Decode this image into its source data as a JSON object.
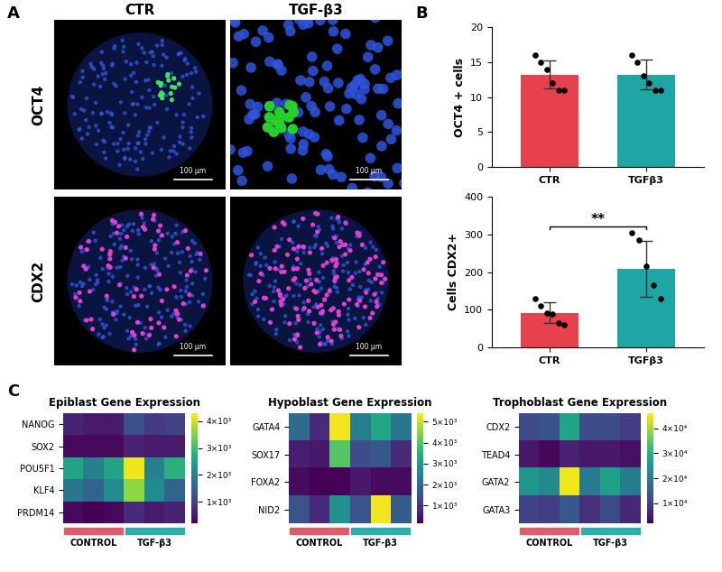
{
  "panel_labels": [
    "A",
    "B",
    "C"
  ],
  "images": {
    "column_labels": [
      "CTR",
      "TGF-β3"
    ],
    "row_labels": [
      "OCT4",
      "CDX2"
    ],
    "scale_bar": "100 µm"
  },
  "chart_data": [
    {
      "type": "bar",
      "y_label": "OCT4 + cells",
      "categories": [
        "CTR",
        "TGFβ3"
      ],
      "values": [
        13.2,
        13.2
      ],
      "errors": [
        2.0,
        2.1
      ],
      "points": [
        [
          16,
          15,
          14,
          12,
          11,
          11
        ],
        [
          16,
          15,
          13,
          12,
          11,
          11
        ]
      ],
      "colors": [
        "#e8414e",
        "#1fa5a5"
      ],
      "ylim": [
        0,
        20
      ],
      "yticks": [
        0,
        5,
        10,
        15,
        20
      ]
    },
    {
      "type": "bar",
      "y_label": "Cells CDX2+",
      "categories": [
        "CTR",
        "TGFβ3"
      ],
      "values": [
        92,
        208
      ],
      "errors": [
        28,
        75
      ],
      "points": [
        [
          130,
          110,
          90,
          88,
          65,
          60
        ],
        [
          305,
          285,
          215,
          165,
          130
        ]
      ],
      "colors": [
        "#e8414e",
        "#1fa5a5"
      ],
      "ylim": [
        0,
        400
      ],
      "yticks": [
        0,
        100,
        200,
        300,
        400
      ],
      "annotation": "**"
    },
    {
      "type": "heatmap",
      "title": "Epiblast Gene Expression",
      "rows": [
        "NANOG",
        "SOX2",
        "POU5F1",
        "KLF4",
        "PRDM14"
      ],
      "column_groups": [
        "CONTROL",
        "CONTROL",
        "CONTROL",
        "TGF-β3",
        "TGF-β3",
        "TGF-β3"
      ],
      "groups": [
        {
          "name": "CONTROL",
          "color": "#e05a68"
        },
        {
          "name": "TGF-β3",
          "color": "#2ab0ac"
        }
      ],
      "cells": [
        [
          600,
          500,
          500,
          1200,
          900,
          1000
        ],
        [
          300,
          300,
          300,
          600,
          500,
          500
        ],
        [
          2600,
          2000,
          2600,
          4200,
          2000,
          2800
        ],
        [
          1800,
          1500,
          2200,
          3600,
          2200,
          1500
        ],
        [
          300,
          200,
          300,
          700,
          500,
          600
        ]
      ],
      "colorbar": {
        "lim": [
          200,
          4300
        ],
        "ticks": [
          {
            "value": 1000,
            "label": "1×10³"
          },
          {
            "value": 2000,
            "label": "2×10³"
          },
          {
            "value": 3000,
            "label": "3×10³"
          },
          {
            "value": 4000,
            "label": "4×10³"
          }
        ]
      },
      "tick_labels": "y"
    },
    {
      "type": "heatmap",
      "title": "Hypoblast Gene Expression",
      "rows": [
        "GATA4",
        "SOX17",
        "FOXA2",
        "NID2"
      ],
      "column_groups": [
        "CONTROL",
        "CONTROL",
        "CONTROL",
        "TGF-β3",
        "TGF-β3",
        "TGF-β3"
      ],
      "groups": [
        {
          "name": "CONTROL",
          "color": "#e05a68"
        },
        {
          "name": "TGF-β3",
          "color": "#2ab0ac"
        }
      ],
      "cells": [
        [
          2000,
          800,
          5300,
          2400,
          3300,
          2200
        ],
        [
          600,
          500,
          4000,
          1400,
          1600,
          800
        ],
        [
          300,
          200,
          200,
          500,
          300,
          300
        ],
        [
          1500,
          800,
          2800,
          1500,
          5300,
          1700
        ]
      ],
      "colorbar": {
        "lim": [
          150,
          5400
        ],
        "ticks": [
          {
            "value": 1000,
            "label": "1×10³"
          },
          {
            "value": 2000,
            "label": "2×10³"
          },
          {
            "value": 3000,
            "label": "3×10³"
          },
          {
            "value": 4000,
            "label": "4×10³"
          },
          {
            "value": 5000,
            "label": "5×10³"
          }
        ]
      },
      "tick_labels": "y"
    },
    {
      "type": "heatmap",
      "title": "Trophoblast Gene Expression",
      "rows": [
        "CDX2",
        "TEAD4",
        "GATA2",
        "GATA3"
      ],
      "column_groups": [
        "CONTROL",
        "CONTROL",
        "CONTROL",
        "TGF-β3",
        "TGF-β3",
        "TGF-β3"
      ],
      "groups": [
        {
          "name": "CONTROL",
          "color": "#e05a68"
        },
        {
          "name": "TGF-β3",
          "color": "#2ab0ac"
        }
      ],
      "cells": [
        [
          12000,
          13000,
          28000,
          12000,
          12000,
          10000
        ],
        [
          5000,
          3000,
          6000,
          5000,
          5000,
          4000
        ],
        [
          25000,
          23000,
          45000,
          20000,
          27000,
          20000
        ],
        [
          11000,
          10000,
          14000,
          8000,
          12000,
          7000
        ]
      ],
      "colorbar": {
        "lim": [
          2000,
          46000
        ],
        "ticks": [
          {
            "value": 10000,
            "label": "1×10⁴"
          },
          {
            "value": 20000,
            "label": "2×10⁴"
          },
          {
            "value": 30000,
            "label": "3×10⁴"
          },
          {
            "value": 40000,
            "label": "4×10⁴"
          }
        ]
      },
      "tick_labels": "y"
    }
  ]
}
